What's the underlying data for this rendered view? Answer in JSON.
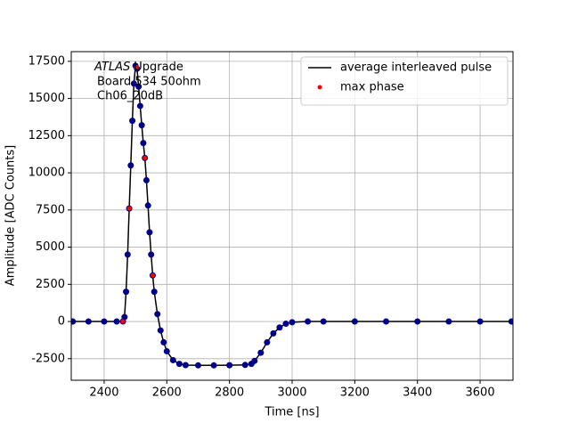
{
  "chart_data": {
    "type": "line",
    "xlabel": "Time [ns]",
    "ylabel": "Amplitude [ADC Counts]",
    "annotation_italic": "ATLAS",
    "annotation_lines": [
      "Upgrade",
      "Board 534 50ohm",
      "Ch06_20dB"
    ],
    "xlim": [
      2295,
      3705
    ],
    "ylim": [
      -3950,
      18150
    ],
    "xticks": [
      2400,
      2600,
      2800,
      3000,
      3200,
      3400,
      3600
    ],
    "yticks": [
      -2500,
      0,
      2500,
      5000,
      7500,
      10000,
      12500,
      15000,
      17500
    ],
    "grid": true,
    "legend": "upper right",
    "series": [
      {
        "name": "average interleaved pulse",
        "color": "#000000",
        "style": "line",
        "x": [
          2300,
          2350,
          2400,
          2440,
          2460,
          2465,
          2470,
          2475,
          2480,
          2485,
          2490,
          2495,
          2500,
          2505,
          2510,
          2515,
          2520,
          2525,
          2530,
          2535,
          2540,
          2545,
          2550,
          2555,
          2560,
          2570,
          2580,
          2590,
          2600,
          2620,
          2640,
          2660,
          2700,
          2750,
          2800,
          2850,
          2870,
          2880,
          2900,
          2920,
          2940,
          2960,
          2980,
          3000,
          3050,
          3100,
          3200,
          3300,
          3400,
          3500,
          3600,
          3700
        ],
        "values": [
          0,
          0,
          0,
          0,
          0,
          300,
          2000,
          4500,
          7600,
          10500,
          13500,
          16000,
          17200,
          17000,
          15800,
          14500,
          13200,
          12000,
          11000,
          9500,
          7800,
          6000,
          4500,
          3100,
          2000,
          500,
          -600,
          -1400,
          -2000,
          -2600,
          -2850,
          -2930,
          -2950,
          -2950,
          -2940,
          -2920,
          -2850,
          -2650,
          -2100,
          -1400,
          -800,
          -400,
          -150,
          -50,
          0,
          0,
          0,
          0,
          0,
          0,
          0,
          0
        ]
      },
      {
        "color": "#00008b",
        "style": "points",
        "x": [
          2300,
          2350,
          2400,
          2440,
          2460,
          2465,
          2470,
          2475,
          2480,
          2485,
          2490,
          2495,
          2500,
          2505,
          2510,
          2515,
          2520,
          2525,
          2530,
          2535,
          2540,
          2545,
          2550,
          2555,
          2560,
          2570,
          2580,
          2590,
          2600,
          2620,
          2640,
          2660,
          2700,
          2750,
          2800,
          2850,
          2870,
          2880,
          2900,
          2920,
          2940,
          2960,
          2980,
          3000,
          3050,
          3100,
          3200,
          3300,
          3400,
          3500,
          3600,
          3700
        ],
        "values": [
          0,
          0,
          0,
          0,
          0,
          300,
          2000,
          4500,
          7600,
          10500,
          13500,
          16000,
          17200,
          17000,
          15800,
          14500,
          13200,
          12000,
          11000,
          9500,
          7800,
          6000,
          4500,
          3100,
          2000,
          500,
          -600,
          -1400,
          -2000,
          -2600,
          -2850,
          -2930,
          -2950,
          -2950,
          -2940,
          -2920,
          -2850,
          -2650,
          -2100,
          -1400,
          -800,
          -400,
          -150,
          -50,
          0,
          0,
          0,
          0,
          0,
          0,
          0,
          0
        ]
      },
      {
        "name": "max phase",
        "color": "#ff0000",
        "style": "points",
        "x": [
          2460,
          2480,
          2503,
          2530,
          2555
        ],
        "values": [
          0,
          7600,
          17100,
          11000,
          3100
        ]
      }
    ]
  }
}
